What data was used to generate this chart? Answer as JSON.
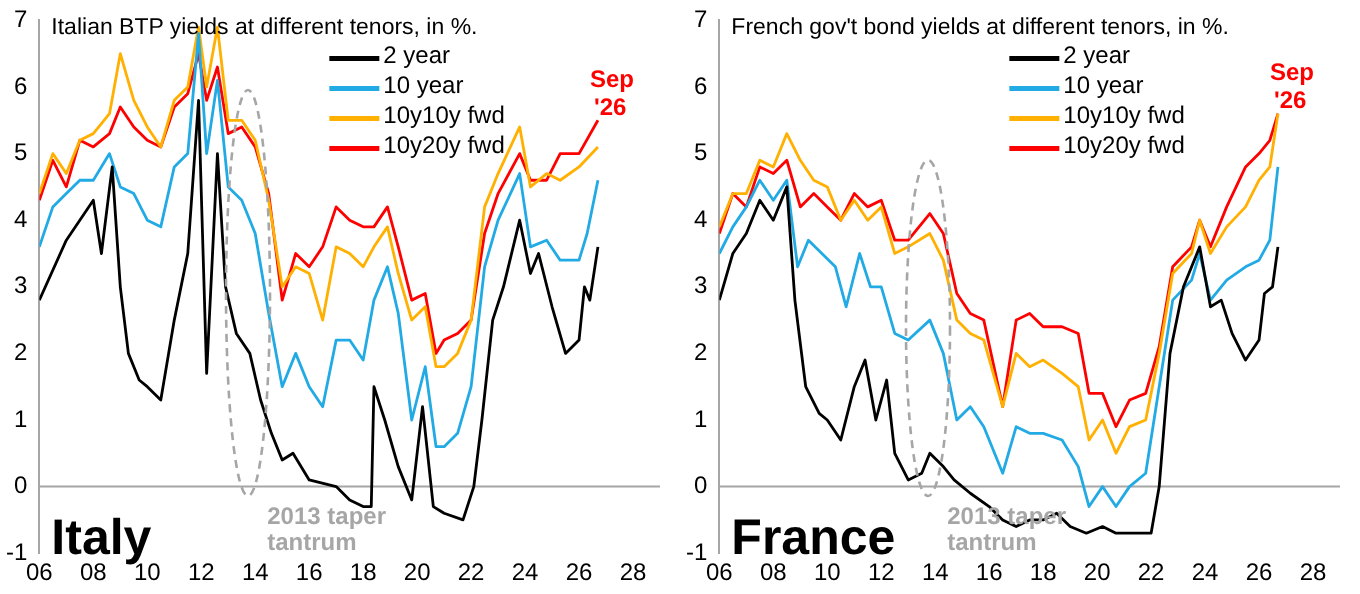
{
  "chart_data": [
    {
      "type": "line",
      "title": "Italian BTP yields at different tenors, in %.",
      "annotations": [
        "Italy",
        {
          "text": "Sep '26",
          "x": 2026.7,
          "y": 5.5
        },
        "2013 taper tantrum"
      ],
      "xlim": [
        2006,
        2029
      ],
      "xticks": [
        {
          "value": 2006,
          "label": "06"
        },
        {
          "value": 2008,
          "label": "08"
        },
        {
          "value": 2010,
          "label": "10"
        },
        {
          "value": 2012,
          "label": "12"
        },
        {
          "value": 2014,
          "label": "14"
        },
        {
          "value": 2016,
          "label": "16"
        },
        {
          "value": 2018,
          "label": "18"
        },
        {
          "value": 2020,
          "label": "20"
        },
        {
          "value": 2022,
          "label": "22"
        },
        {
          "value": 2024,
          "label": "24"
        },
        {
          "value": 2026,
          "label": "26"
        },
        {
          "value": 2028,
          "label": "28"
        }
      ],
      "ylim": [
        -1,
        7
      ],
      "yticks": [
        -1,
        0,
        1,
        2,
        3,
        4,
        5,
        6,
        7
      ],
      "grid": false,
      "legend": "top right",
      "marker": "none",
      "line_style": "solid",
      "ref_lines": [
        {
          "axis": "y",
          "value": 0,
          "color": "#a6a6a6"
        }
      ],
      "series": [
        {
          "name": "2 year",
          "color": "#000000",
          "x": [
            2006,
            2007,
            2008,
            2008.3,
            2008.7,
            2009,
            2009.3,
            2009.7,
            2010,
            2010.5,
            2011,
            2011.5,
            2011.9,
            2012.2,
            2012.6,
            2012.9,
            2013.3,
            2013.8,
            2014.2,
            2014.6,
            2015,
            2015.4,
            2016,
            2017,
            2017.5,
            2018,
            2018.3,
            2018.4,
            2018.8,
            2019.3,
            2019.8,
            2020.2,
            2020.6,
            2021,
            2021.7,
            2022.1,
            2022.4,
            2022.8,
            2023.2,
            2023.8,
            2024.2,
            2024.5,
            2025,
            2025.5,
            2026,
            2026.2,
            2026.4,
            2026.7
          ],
          "values": [
            2.8,
            3.7,
            4.3,
            3.5,
            4.8,
            3.0,
            2.0,
            1.6,
            1.5,
            1.3,
            2.5,
            3.5,
            5.8,
            1.7,
            5.0,
            3.0,
            2.3,
            2.0,
            1.3,
            0.8,
            0.4,
            0.5,
            0.1,
            0.0,
            -0.2,
            -0.3,
            -0.3,
            1.5,
            1.0,
            0.3,
            -0.2,
            1.2,
            -0.3,
            -0.4,
            -0.5,
            0.0,
            1.0,
            2.5,
            3.0,
            4.0,
            3.2,
            3.5,
            2.7,
            2.0,
            2.2,
            3.0,
            2.8,
            3.6
          ]
        },
        {
          "name": "10 year",
          "color": "#21aae4",
          "x": [
            2006,
            2006.5,
            2007,
            2007.5,
            2008,
            2008.6,
            2009,
            2009.5,
            2010,
            2010.5,
            2011,
            2011.5,
            2011.9,
            2012.2,
            2012.6,
            2013,
            2013.5,
            2014,
            2014.5,
            2015,
            2015.5,
            2016,
            2016.5,
            2017,
            2017.5,
            2018,
            2018.4,
            2018.9,
            2019.3,
            2019.8,
            2020.3,
            2020.7,
            2021,
            2021.5,
            2022,
            2022.5,
            2023,
            2023.8,
            2024.2,
            2024.8,
            2025.3,
            2026,
            2026.3,
            2026.7
          ],
          "values": [
            3.6,
            4.2,
            4.4,
            4.6,
            4.6,
            5.0,
            4.5,
            4.4,
            4.0,
            3.9,
            4.8,
            5.0,
            6.8,
            5.0,
            6.1,
            4.5,
            4.3,
            3.8,
            2.6,
            1.5,
            2.0,
            1.5,
            1.2,
            2.2,
            2.2,
            1.9,
            2.8,
            3.3,
            2.6,
            1.0,
            1.8,
            0.6,
            0.6,
            0.8,
            1.5,
            3.3,
            4.0,
            4.7,
            3.6,
            3.7,
            3.4,
            3.4,
            3.8,
            4.6
          ]
        },
        {
          "name": "10y10y fwd",
          "color": "#ffb000",
          "x": [
            2006,
            2006.5,
            2007,
            2007.5,
            2008,
            2008.6,
            2009,
            2009.5,
            2010,
            2010.5,
            2011,
            2011.5,
            2011.9,
            2012.2,
            2012.6,
            2013,
            2013.5,
            2014,
            2014.5,
            2015,
            2015.5,
            2016,
            2016.5,
            2017,
            2017.5,
            2018,
            2018.4,
            2018.9,
            2019.3,
            2019.8,
            2020.3,
            2020.7,
            2021,
            2021.5,
            2022,
            2022.5,
            2023,
            2023.8,
            2024.2,
            2024.8,
            2025.3,
            2026,
            2026.7
          ],
          "values": [
            4.4,
            5.0,
            4.7,
            5.2,
            5.3,
            5.6,
            6.5,
            5.8,
            5.4,
            5.1,
            5.8,
            6.0,
            6.9,
            6.0,
            6.9,
            5.5,
            5.5,
            5.2,
            4.3,
            3.0,
            3.3,
            3.2,
            2.5,
            3.6,
            3.5,
            3.3,
            3.6,
            3.9,
            3.2,
            2.5,
            2.7,
            1.8,
            1.8,
            2.0,
            2.5,
            4.2,
            4.7,
            5.4,
            4.5,
            4.7,
            4.6,
            4.8,
            5.1
          ]
        },
        {
          "name": "10y20y fwd",
          "color": "#ff0000",
          "x": [
            2006,
            2006.5,
            2007,
            2007.5,
            2008,
            2008.6,
            2009,
            2009.5,
            2010,
            2010.5,
            2011,
            2011.5,
            2011.9,
            2012.2,
            2012.6,
            2013,
            2013.5,
            2014,
            2014.5,
            2015,
            2015.5,
            2016,
            2016.5,
            2017,
            2017.5,
            2018,
            2018.4,
            2018.9,
            2019.3,
            2019.8,
            2020.3,
            2020.7,
            2021,
            2021.5,
            2022,
            2022.5,
            2023,
            2023.8,
            2024.2,
            2024.8,
            2025.3,
            2026,
            2026.7
          ],
          "values": [
            4.3,
            4.9,
            4.5,
            5.2,
            5.1,
            5.3,
            5.7,
            5.4,
            5.2,
            5.1,
            5.7,
            5.9,
            6.5,
            5.8,
            6.3,
            5.3,
            5.4,
            5.1,
            4.4,
            2.8,
            3.5,
            3.3,
            3.6,
            4.2,
            4.0,
            3.9,
            3.9,
            4.2,
            3.6,
            2.8,
            2.9,
            2.0,
            2.2,
            2.3,
            2.5,
            3.8,
            4.4,
            5.0,
            4.6,
            4.6,
            5.0,
            5.0,
            5.5
          ]
        }
      ]
    },
    {
      "type": "line",
      "title": "French gov't bond yields at different tenors, in %.",
      "annotations": [
        "France",
        {
          "text": "Sep '26",
          "x": 2026.7,
          "y": 5.6
        },
        "2013 taper tantrum"
      ],
      "xlim": [
        2006,
        2029
      ],
      "xticks": [
        {
          "value": 2006,
          "label": "06"
        },
        {
          "value": 2008,
          "label": "08"
        },
        {
          "value": 2010,
          "label": "10"
        },
        {
          "value": 2012,
          "label": "12"
        },
        {
          "value": 2014,
          "label": "14"
        },
        {
          "value": 2016,
          "label": "16"
        },
        {
          "value": 2018,
          "label": "18"
        },
        {
          "value": 2020,
          "label": "20"
        },
        {
          "value": 2022,
          "label": "22"
        },
        {
          "value": 2024,
          "label": "24"
        },
        {
          "value": 2026,
          "label": "26"
        },
        {
          "value": 2028,
          "label": "28"
        }
      ],
      "ylim": [
        -1,
        7
      ],
      "yticks": [
        -1,
        0,
        1,
        2,
        3,
        4,
        5,
        6,
        7
      ],
      "grid": false,
      "legend": "top right",
      "marker": "none",
      "line_style": "solid",
      "ref_lines": [
        {
          "axis": "y",
          "value": 0,
          "color": "#a6a6a6"
        }
      ],
      "series": [
        {
          "name": "2 year",
          "color": "#000000",
          "x": [
            2006,
            2006.5,
            2007,
            2007.5,
            2008,
            2008.5,
            2008.8,
            2009.2,
            2009.7,
            2010,
            2010.5,
            2011,
            2011.4,
            2011.8,
            2012.2,
            2012.5,
            2013,
            2013.5,
            2013.8,
            2014.3,
            2014.7,
            2015.3,
            2016,
            2016.5,
            2017,
            2017.5,
            2018,
            2018.5,
            2019,
            2019.6,
            2020.2,
            2020.7,
            2021.5,
            2022,
            2022.3,
            2022.7,
            2023.2,
            2023.8,
            2024.2,
            2024.6,
            2025,
            2025.5,
            2026,
            2026.2,
            2026.5,
            2026.7
          ],
          "values": [
            2.8,
            3.5,
            3.8,
            4.3,
            4.0,
            4.5,
            2.8,
            1.5,
            1.1,
            1.0,
            0.7,
            1.5,
            1.9,
            1.0,
            1.6,
            0.5,
            0.1,
            0.2,
            0.5,
            0.3,
            0.1,
            -0.1,
            -0.3,
            -0.5,
            -0.6,
            -0.5,
            -0.5,
            -0.4,
            -0.6,
            -0.7,
            -0.6,
            -0.7,
            -0.7,
            -0.7,
            0.0,
            2.0,
            3.0,
            3.6,
            2.7,
            2.8,
            2.3,
            1.9,
            2.2,
            2.9,
            3.0,
            3.6
          ]
        },
        {
          "name": "10 year",
          "color": "#21aae4",
          "x": [
            2006,
            2006.5,
            2007,
            2007.5,
            2008,
            2008.5,
            2008.9,
            2009.3,
            2009.8,
            2010.3,
            2010.7,
            2011.2,
            2011.6,
            2012,
            2012.5,
            2013,
            2013.8,
            2014.3,
            2014.8,
            2015.3,
            2015.8,
            2016.5,
            2017,
            2017.5,
            2018,
            2018.7,
            2019.3,
            2019.7,
            2020.2,
            2020.7,
            2021.2,
            2021.8,
            2022.3,
            2022.8,
            2023.5,
            2023.8,
            2024.2,
            2024.8,
            2025.5,
            2026,
            2026.4,
            2026.7
          ],
          "values": [
            3.5,
            3.9,
            4.2,
            4.6,
            4.3,
            4.6,
            3.3,
            3.7,
            3.5,
            3.3,
            2.7,
            3.5,
            3.0,
            3.0,
            2.3,
            2.2,
            2.5,
            2.0,
            1.0,
            1.2,
            0.9,
            0.2,
            0.9,
            0.8,
            0.8,
            0.7,
            0.3,
            -0.3,
            0.0,
            -0.3,
            0.0,
            0.2,
            1.5,
            2.8,
            3.1,
            3.5,
            2.8,
            3.1,
            3.3,
            3.4,
            3.7,
            4.8
          ]
        },
        {
          "name": "10y10y fwd",
          "color": "#ffb000",
          "x": [
            2006,
            2006.5,
            2007,
            2007.5,
            2008,
            2008.5,
            2009,
            2009.5,
            2010,
            2010.5,
            2011,
            2011.5,
            2012,
            2012.5,
            2013,
            2013.8,
            2014.3,
            2014.8,
            2015.3,
            2015.8,
            2016.5,
            2017,
            2017.5,
            2018,
            2018.7,
            2019.3,
            2019.7,
            2020.2,
            2020.7,
            2021.2,
            2021.8,
            2022.3,
            2022.8,
            2023.5,
            2023.8,
            2024.2,
            2024.8,
            2025.5,
            2026,
            2026.4,
            2026.7
          ],
          "values": [
            3.9,
            4.4,
            4.4,
            4.9,
            4.8,
            5.3,
            4.9,
            4.6,
            4.5,
            4.0,
            4.3,
            4.0,
            4.2,
            3.5,
            3.6,
            3.8,
            3.4,
            2.5,
            2.3,
            2.2,
            1.2,
            2.0,
            1.8,
            1.9,
            1.7,
            1.5,
            0.7,
            1.0,
            0.5,
            0.9,
            1.0,
            2.0,
            3.2,
            3.5,
            4.0,
            3.5,
            3.9,
            4.2,
            4.6,
            4.8,
            5.6
          ]
        },
        {
          "name": "10y20y fwd",
          "color": "#ff0000",
          "x": [
            2006,
            2006.5,
            2007,
            2007.5,
            2008,
            2008.5,
            2009,
            2009.5,
            2010,
            2010.5,
            2011,
            2011.5,
            2012,
            2012.5,
            2013,
            2013.8,
            2014.3,
            2014.8,
            2015.3,
            2015.8,
            2016.5,
            2017,
            2017.5,
            2018,
            2018.7,
            2019.3,
            2019.7,
            2020.2,
            2020.7,
            2021.2,
            2021.8,
            2022.3,
            2022.8,
            2023.5,
            2023.8,
            2024.2,
            2024.8,
            2025.5,
            2026,
            2026.4,
            2026.7
          ],
          "values": [
            3.8,
            4.4,
            4.2,
            4.8,
            4.7,
            4.9,
            4.2,
            4.4,
            4.2,
            4.0,
            4.4,
            4.2,
            4.3,
            3.7,
            3.7,
            4.1,
            3.8,
            2.9,
            2.6,
            2.5,
            1.2,
            2.5,
            2.6,
            2.4,
            2.4,
            2.3,
            1.4,
            1.4,
            0.9,
            1.3,
            1.4,
            2.1,
            3.3,
            3.6,
            4.0,
            3.6,
            4.2,
            4.8,
            5.0,
            5.2,
            5.6
          ]
        }
      ]
    }
  ]
}
